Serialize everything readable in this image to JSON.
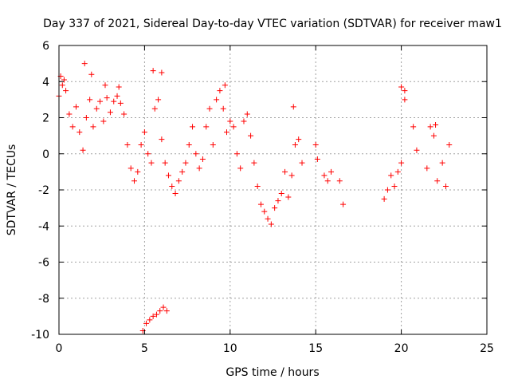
{
  "chart_data": {
    "type": "scatter",
    "title": "Day 337 of 2021, Sidereal Day-to-day VTEC variation (SDTVAR) for receiver maw1",
    "xlabel": "GPS time / hours",
    "ylabel": "SDTVAR / TECUs",
    "xlim": [
      0,
      25
    ],
    "ylim": [
      -10,
      6
    ],
    "xticks": [
      0,
      5,
      10,
      15,
      20,
      25
    ],
    "xtick_labels": [
      "0",
      "5",
      "10",
      "15",
      "20",
      "25"
    ],
    "yticks": [
      -10,
      -8,
      -6,
      -4,
      -2,
      0,
      2,
      4,
      6
    ],
    "ytick_labels": [
      "-10",
      "-8",
      "-6",
      "-4",
      "-2",
      "0",
      "2",
      "4",
      "6"
    ],
    "grid": true,
    "marker": "+",
    "color": "#ff0000",
    "series": [
      {
        "name": "SDTVAR",
        "x": [
          0.0,
          0.2,
          0.4,
          0.6,
          0.8,
          1.0,
          1.2,
          1.4,
          1.6,
          1.8,
          2.0,
          2.2,
          2.4,
          2.6,
          2.8,
          3.0,
          3.2,
          3.4,
          3.6,
          3.8,
          4.0,
          4.2,
          4.4,
          4.6,
          4.8,
          5.0,
          5.2,
          5.4,
          5.6,
          5.8,
          6.0,
          6.2,
          6.4,
          6.6,
          6.8,
          7.0,
          7.2,
          7.4,
          7.6,
          7.8,
          8.0,
          8.2,
          8.4,
          8.6,
          8.8,
          9.0,
          9.2,
          9.4,
          9.6,
          9.8,
          10.0,
          10.2,
          10.4,
          10.6,
          10.8,
          11.0,
          11.2,
          11.4,
          11.6,
          11.8,
          12.0,
          12.2,
          12.4,
          12.6,
          12.8,
          13.0,
          13.2,
          13.4,
          13.6,
          13.8,
          14.0,
          14.2,
          15.0,
          15.1,
          15.5,
          15.7,
          15.9,
          16.4,
          16.6,
          19.0,
          19.2,
          19.4,
          19.6,
          19.8,
          20.0,
          20.2,
          20.7,
          20.9,
          21.5,
          21.7,
          21.9,
          22.1,
          22.4,
          22.6,
          22.8,
          4.9,
          5.1,
          5.3,
          5.5,
          5.7,
          5.9,
          6.1,
          6.3,
          0.1,
          0.3,
          1.5,
          1.9,
          2.7,
          3.5,
          5.5,
          6.0,
          9.7,
          13.7,
          20.0,
          20.2,
          22.0
        ],
        "y": [
          3.2,
          3.8,
          3.5,
          2.2,
          1.5,
          2.6,
          1.2,
          0.2,
          2.0,
          3.0,
          1.5,
          2.5,
          2.9,
          1.8,
          3.1,
          2.3,
          2.9,
          3.2,
          2.8,
          2.2,
          0.5,
          -0.8,
          -1.5,
          -1.0,
          0.5,
          1.2,
          0.0,
          -0.5,
          2.5,
          3.0,
          0.8,
          -0.5,
          -1.2,
          -1.8,
          -2.2,
          -1.5,
          -1.0,
          -0.5,
          0.5,
          1.5,
          0.0,
          -0.8,
          -0.3,
          1.5,
          2.5,
          0.5,
          3.0,
          3.5,
          2.5,
          1.2,
          1.8,
          1.5,
          0.0,
          -0.8,
          1.8,
          2.2,
          1.0,
          -0.5,
          -1.8,
          -2.8,
          -3.2,
          -3.6,
          -3.9,
          -3.0,
          -2.6,
          -2.2,
          -1.0,
          -2.4,
          -1.2,
          0.5,
          0.8,
          -0.5,
          0.5,
          -0.3,
          -1.2,
          -1.5,
          -1.0,
          -1.5,
          -2.8,
          -2.5,
          -2.0,
          -1.2,
          -1.8,
          -1.0,
          -0.5,
          3.0,
          1.5,
          0.2,
          -0.8,
          1.5,
          1.0,
          -1.5,
          -0.5,
          -1.8,
          0.5,
          -9.8,
          -9.4,
          -9.2,
          -9.0,
          -8.9,
          -8.7,
          -8.5,
          -8.7,
          4.3,
          4.1,
          5.0,
          4.4,
          3.8,
          3.7,
          4.6,
          4.5,
          3.8,
          2.6,
          3.7,
          3.5,
          1.6
        ]
      }
    ]
  }
}
